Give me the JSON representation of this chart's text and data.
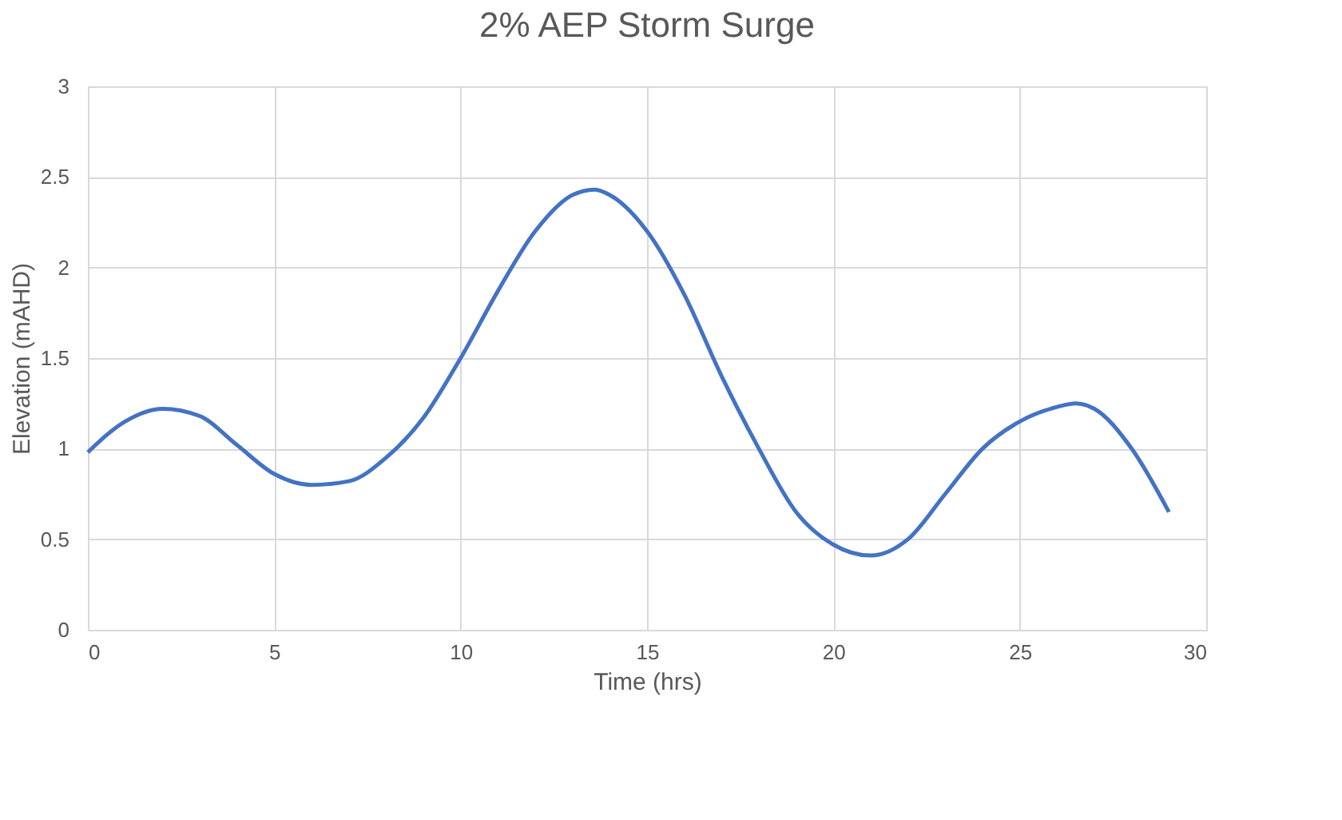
{
  "chart_data": {
    "type": "line",
    "title": "2% AEP Storm Surge",
    "xlabel": "Time (hrs)",
    "ylabel": "Elevation (mAHD)",
    "x": [
      0,
      1,
      2,
      3,
      4,
      5,
      6,
      7,
      8,
      9,
      10,
      11,
      12,
      13,
      13.6,
      14,
      15,
      16,
      17,
      18,
      19,
      20,
      21,
      22,
      23,
      24,
      25,
      26,
      26.5,
      27,
      28,
      29
    ],
    "series": [
      {
        "color": "#4472c4",
        "values": [
          0.98,
          1.15,
          1.22,
          1.18,
          1.02,
          0.86,
          0.8,
          0.82,
          0.95,
          1.17,
          1.5,
          1.87,
          2.2,
          2.4,
          2.43,
          2.4,
          2.2,
          1.85,
          1.4,
          1.0,
          0.65,
          0.47,
          0.41,
          0.5,
          0.75,
          1.0,
          1.15,
          1.23,
          1.25,
          1.22,
          1.0,
          0.65
        ]
      }
    ],
    "xlim": [
      0,
      30
    ],
    "xticks": [
      0,
      5,
      10,
      15,
      20,
      25,
      30
    ],
    "ylim": [
      0,
      3
    ],
    "yticks": [
      0,
      0.5,
      1,
      1.5,
      2,
      2.5,
      3
    ],
    "grid": true,
    "marker": "none",
    "line_style": "solid"
  }
}
